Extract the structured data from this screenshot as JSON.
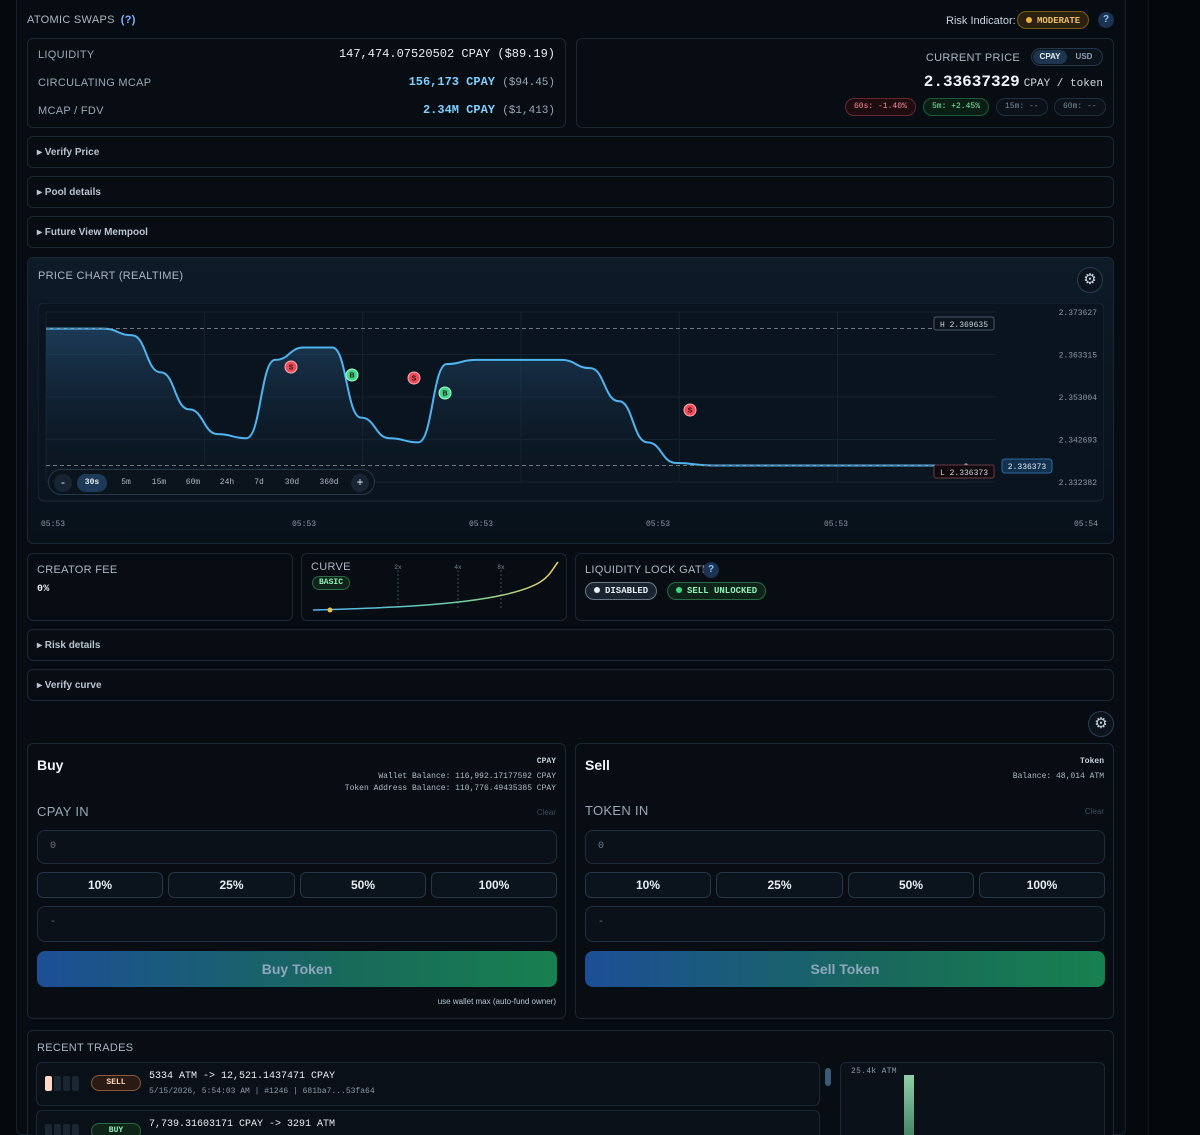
{
  "header": {
    "title": "ATOMIC SWAPS",
    "help": "(?)",
    "risk_label": "Risk Indicator:",
    "risk_value": "MODERATE",
    "help_icon": "?"
  },
  "stats": {
    "liquidity": {
      "label": "LIQUIDITY",
      "value": "147,474.07520502 CPAY ($89.19)"
    },
    "circulating": {
      "label": "CIRCULATING MCAP",
      "value": "156,173 CPAY",
      "sub": "($94.45)"
    },
    "mcap_fdv": {
      "label": "MCAP / FDV",
      "value": "2.34M CPAY",
      "sub": "($1,413)"
    }
  },
  "price": {
    "label": "CURRENT PRICE",
    "toggle": [
      "CPAY",
      "USD"
    ],
    "value": "2.33637329",
    "unit": "CPAY / token",
    "changes": [
      "60s: -1.40%",
      "5m: +2.45%",
      "15m: --",
      "60m: --"
    ]
  },
  "sections": {
    "verify_price": "▸ Verify Price",
    "pool_details": "▸ Pool details",
    "future_view": "▸ Future View Mempool",
    "risk_details": "▸ Risk details",
    "verify_curve": "▸ Verify curve"
  },
  "chart": {
    "title": "PRICE CHART (REALTIME)",
    "high_label": "H 2.369635",
    "low_label": "L 2.336373",
    "current_label": "2.336373",
    "y_ticks": [
      "2.373627",
      "2.363315",
      "2.353004",
      "2.342693",
      "2.332382"
    ],
    "x_ticks": [
      "05:53",
      "05:53",
      "05:53",
      "05:53",
      "05:53",
      "05:54"
    ],
    "timeframes": [
      "30s",
      "5m",
      "15m",
      "60m",
      "24h",
      "7d",
      "30d",
      "360d"
    ],
    "minus": "-",
    "plus": "+",
    "markers": [
      {
        "t": "S",
        "x": 0.49
      },
      {
        "t": "B",
        "x": 0.6
      },
      {
        "t": "S",
        "x": 0.73
      },
      {
        "t": "B",
        "x": 0.79
      },
      {
        "t": "S",
        "x": 1.3
      }
    ]
  },
  "chart_data": {
    "type": "line",
    "title": "PRICE CHART (REALTIME)",
    "y_range": [
      2.332382,
      2.373627
    ],
    "y_ticks": [
      2.373627,
      2.363315,
      2.353004,
      2.342693,
      2.332382
    ],
    "x_ticks": [
      "05:53",
      "05:53",
      "05:53",
      "05:53",
      "05:53",
      "05:54"
    ],
    "high": 2.369635,
    "low": 2.336373,
    "current": 2.336373,
    "series": [
      {
        "values": [
          2.3696,
          2.3696,
          2.3696,
          2.368,
          2.359,
          2.35,
          2.344,
          2.343,
          2.362,
          2.365,
          2.365,
          2.348,
          2.343,
          2.342,
          2.361,
          2.362,
          2.362,
          2.362,
          2.362,
          2.36,
          2.352,
          2.342,
          2.337,
          2.3364,
          2.3364,
          2.3364,
          2.3364,
          2.3364,
          2.3364,
          2.3364,
          2.3364
        ]
      }
    ],
    "grid": true
  },
  "info": {
    "creator_fee": {
      "label": "CREATOR FEE",
      "value": "0%"
    },
    "curve": {
      "label": "CURVE",
      "badge": "BASIC",
      "marks": [
        "2x",
        "4x",
        "8x"
      ]
    },
    "lock": {
      "label": "LIQUIDITY LOCK GATE",
      "help": "?",
      "disabled": "DISABLED",
      "sell": "SELL UNLOCKED"
    }
  },
  "buy": {
    "title": "Buy",
    "currency": "CPAY",
    "wallet_balance": "Wallet Balance: 116,992.17177592 CPAY",
    "token_balance": "Token Address Balance: 110,776.49435385 CPAY",
    "in_label": "CPAY IN",
    "clear": "Clear",
    "placeholder": "0",
    "preview": "-",
    "pcts": [
      "10%",
      "25%",
      "50%",
      "100%"
    ],
    "action": "Buy Token",
    "hint": "use wallet max (auto-fund owner)"
  },
  "sell": {
    "title": "Sell",
    "currency": "Token",
    "balance": "Balance: 48,014 ATM",
    "in_label": "TOKEN IN",
    "clear": "Clear",
    "placeholder": "0",
    "preview": "-",
    "pcts": [
      "10%",
      "25%",
      "50%",
      "100%"
    ],
    "action": "Sell Token"
  },
  "recent": {
    "title": "RECENT TRADES",
    "vol_label": "25.4k ATM",
    "trades": [
      {
        "side": "SELL",
        "main": "5334 ATM -> 12,521.1437471 CPAY",
        "sub": "5/15/2026, 5:54:03 AM | #1246 | 681ba7...53fa64"
      },
      {
        "side": "BUY",
        "main": "7,739.31603171 CPAY -> 3291 ATM",
        "sub": ""
      }
    ]
  },
  "colors": {
    "line": "#4fb4f0",
    "sell": "#f04a5a",
    "buy": "#3ed88a",
    "accent": "#7fd0ff"
  }
}
